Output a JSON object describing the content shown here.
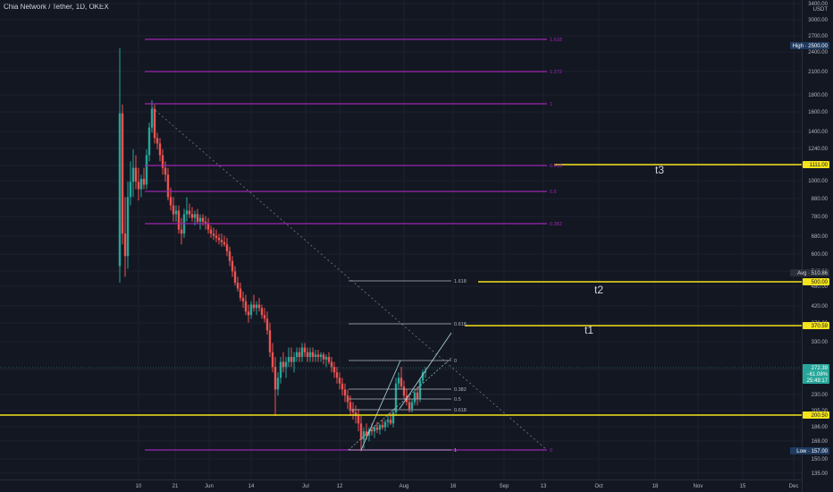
{
  "header": {
    "title": "Chia Network / Tether, 1D, OKEX"
  },
  "price_axis": {
    "currency": "USDT",
    "ticks": [
      "3400.00",
      "3000.00",
      "2700.00",
      "2400.00",
      "2100.00",
      "1800.00",
      "1600.00",
      "1400.00",
      "1240.00",
      "1100.00",
      "1000.00",
      "880.00",
      "780.00",
      "680.00",
      "600.00",
      "540.00",
      "480.00",
      "420.00",
      "370.00",
      "330.00",
      "290.00",
      "230.00",
      "205.00",
      "186.00",
      "168.00",
      "150.00",
      "135.00"
    ],
    "markers": [
      {
        "label": "High · 2500.00",
        "bg": "#1e3a5f",
        "fg": "#ffffff"
      },
      {
        "label": "1111.00",
        "bg": "#f5e31b",
        "fg": "#131722"
      },
      {
        "label": "Avg · 510.86",
        "bg": "#2a2e39",
        "fg": "#d1d4dc"
      },
      {
        "label": "500.00",
        "bg": "#f5e31b",
        "fg": "#131722"
      },
      {
        "label": "370.59",
        "bg": "#f5e31b",
        "fg": "#131722"
      },
      {
        "label": "272.39",
        "bg": "#26a69a",
        "fg": "#ffffff"
      },
      {
        "label": "−61.08%",
        "bg": "#26a69a",
        "fg": "#ffffff"
      },
      {
        "label": "25:49:17",
        "bg": "#26a69a",
        "fg": "#ffffff"
      },
      {
        "label": "200.50",
        "bg": "#f5e31b",
        "fg": "#131722"
      },
      {
        "label": "Low · 157.00",
        "bg": "#1e3a5f",
        "fg": "#ffffff"
      }
    ]
  },
  "time_axis": {
    "ticks": [
      "10",
      "21",
      "Jun",
      "14",
      "Jul",
      "12",
      "Aug",
      "16",
      "Sep",
      "13",
      "Oct",
      "18",
      "Nov",
      "15",
      "Dec"
    ]
  },
  "fib_main": {
    "levels": [
      "1.618",
      "1.272",
      "1",
      "0.618",
      "0.5",
      "0.382",
      "0"
    ],
    "color": "#9c27b0"
  },
  "fib_small": {
    "levels": [
      "1.618",
      "0.618",
      "0",
      "0.382",
      "0.5",
      "0.618",
      "1"
    ],
    "color": "#b2b5be"
  },
  "targets": [
    {
      "label": "t3"
    },
    {
      "label": "t2"
    },
    {
      "label": "t1"
    }
  ],
  "colors": {
    "up": "#26a69a",
    "down": "#ef5350",
    "target_line": "#f5e31b",
    "trend_line": "#b2dfdb"
  },
  "chart_data": {
    "type": "candlestick",
    "symbol": "Chia Network / Tether",
    "interval": "1D",
    "exchange": "OKEX",
    "last_price": 272.39,
    "change_percent": -61.08,
    "high": 2500.0,
    "low": 157.0,
    "average": 510.86,
    "horizontal_levels": [
      1111.0,
      500.0,
      370.59,
      200.5
    ]
  }
}
